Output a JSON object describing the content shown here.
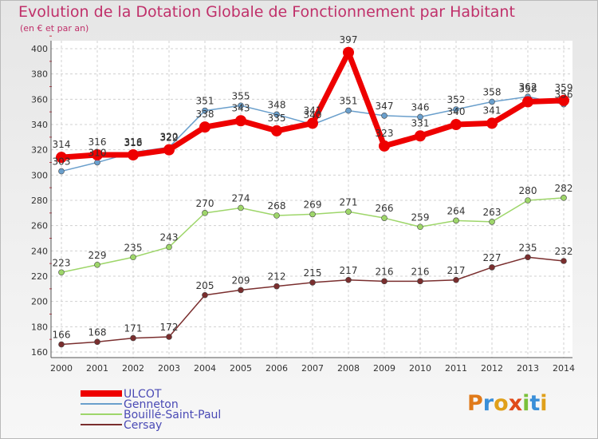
{
  "title": "Evolution de la Dotation Globale de Fonctionnement par Habitant",
  "subtitle": "(en € et par an)",
  "logo": {
    "text": "Proxiti",
    "colors": [
      "#e07a1a",
      "#3a8fd8",
      "#e0a01a",
      "#e04a1a",
      "#7ac13a",
      "#3a8fd8",
      "#e0a01a"
    ]
  },
  "chart_data": {
    "type": "line",
    "title": "Evolution de la Dotation Globale de Fonctionnement par Habitant",
    "ylabel": "(en € et par an)",
    "xlabel": "",
    "categories": [
      "2000",
      "2001",
      "2002",
      "2003",
      "2004",
      "2005",
      "2006",
      "2007",
      "2008",
      "2009",
      "2010",
      "2011",
      "2012",
      "2013",
      "2014"
    ],
    "ylim": [
      160,
      400
    ],
    "yticks": [
      160,
      180,
      200,
      220,
      240,
      260,
      280,
      300,
      320,
      340,
      360,
      380,
      400
    ],
    "grid": true,
    "series": [
      {
        "name": "ULCOT",
        "color": "#ee0000",
        "values": [
          314,
          316,
          316,
          320,
          338,
          343,
          335,
          341,
          397,
          323,
          331,
          340,
          341,
          358,
          359
        ]
      },
      {
        "name": "Genneton",
        "color": "#6a9fcc",
        "values": [
          303,
          310,
          318,
          322,
          351,
          355,
          348,
          340,
          351,
          347,
          346,
          352,
          358,
          362,
          356
        ]
      },
      {
        "name": "Bouillé-Saint-Paul",
        "color": "#9ed66a",
        "values": [
          223,
          229,
          235,
          243,
          270,
          274,
          268,
          269,
          271,
          266,
          259,
          264,
          263,
          280,
          282
        ]
      },
      {
        "name": "Cersay",
        "color": "#7a2e2e",
        "values": [
          166,
          168,
          171,
          172,
          205,
          209,
          212,
          215,
          217,
          216,
          216,
          217,
          227,
          235,
          232
        ]
      }
    ]
  }
}
